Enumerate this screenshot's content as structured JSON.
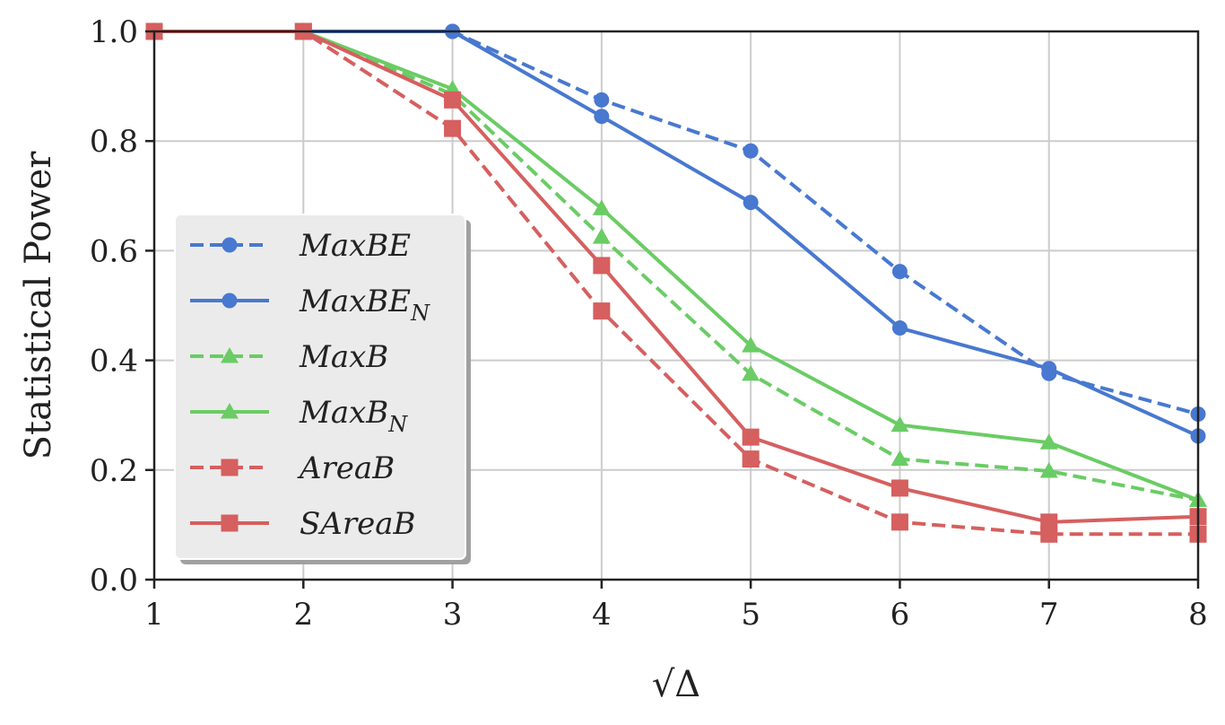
{
  "chart_data": {
    "type": "line",
    "title": "",
    "xlabel": "√Δ",
    "ylabel": "Statistical Power",
    "xlim": [
      1,
      8
    ],
    "ylim": [
      0.0,
      1.0
    ],
    "grid": true,
    "legend_position": "center-left",
    "x": [
      1,
      2,
      3,
      4,
      5,
      6,
      7,
      8
    ],
    "x_ticks": [
      "1",
      "2",
      "3",
      "4",
      "5",
      "6",
      "7",
      "8"
    ],
    "y_ticks": [
      "0.0",
      "0.2",
      "0.4",
      "0.6",
      "0.8",
      "1.0"
    ],
    "series": [
      {
        "name": "MaxBE",
        "label_main": "MaxBE",
        "label_sub": "",
        "color": "#4878d0",
        "dashed": true,
        "marker": "circle",
        "values": [
          1.0,
          1.0,
          1.0,
          0.875,
          0.782,
          0.562,
          0.376,
          0.302
        ]
      },
      {
        "name": "MaxBE_N",
        "label_main": "MaxBE",
        "label_sub": "N",
        "color": "#4878d0",
        "dashed": false,
        "marker": "circle",
        "values": [
          1.0,
          1.0,
          1.0,
          0.845,
          0.688,
          0.459,
          0.385,
          0.262
        ]
      },
      {
        "name": "MaxB",
        "label_main": "MaxB",
        "label_sub": "",
        "color": "#6acc64",
        "dashed": true,
        "marker": "triangle",
        "values": [
          1.0,
          1.0,
          0.885,
          0.625,
          0.375,
          0.22,
          0.198,
          0.145
        ]
      },
      {
        "name": "MaxB_N",
        "label_main": "MaxB",
        "label_sub": "N",
        "color": "#6acc64",
        "dashed": false,
        "marker": "triangle",
        "values": [
          1.0,
          1.0,
          0.895,
          0.677,
          0.427,
          0.282,
          0.25,
          0.145
        ]
      },
      {
        "name": "AreaB",
        "label_main": "AreaB",
        "label_sub": "",
        "color": "#d65f5f",
        "dashed": true,
        "marker": "square",
        "values": [
          1.0,
          1.0,
          0.823,
          0.49,
          0.22,
          0.105,
          0.083,
          0.083
        ]
      },
      {
        "name": "SAreaB",
        "label_main": "SAreaB",
        "label_sub": "",
        "color": "#d65f5f",
        "dashed": false,
        "marker": "square",
        "values": [
          1.0,
          1.0,
          0.875,
          0.573,
          0.26,
          0.167,
          0.105,
          0.115
        ]
      }
    ]
  }
}
